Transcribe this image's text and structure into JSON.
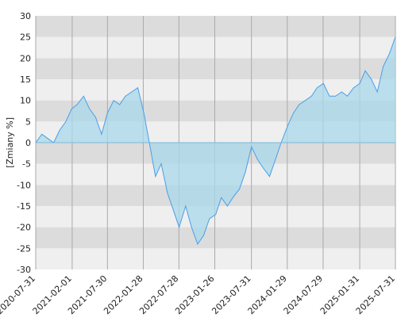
{
  "chart_data": {
    "type": "area",
    "y_label": "[Zmiany %]",
    "x": [
      "2020-07-31",
      "2020-08-31",
      "2020-09-30",
      "2020-10-30",
      "2020-11-30",
      "2020-12-31",
      "2021-01-29",
      "2021-02-26",
      "2021-03-31",
      "2021-04-30",
      "2021-05-31",
      "2021-06-30",
      "2021-07-30",
      "2021-08-31",
      "2021-09-30",
      "2021-10-29",
      "2021-11-30",
      "2021-12-31",
      "2022-01-31",
      "2022-02-28",
      "2022-03-31",
      "2022-04-29",
      "2022-05-31",
      "2022-06-30",
      "2022-07-29",
      "2022-08-31",
      "2022-09-30",
      "2022-10-31",
      "2022-11-30",
      "2022-12-30",
      "2023-01-31",
      "2023-02-28",
      "2023-03-31",
      "2023-04-28",
      "2023-05-31",
      "2023-06-30",
      "2023-07-31",
      "2023-08-31",
      "2023-09-29",
      "2023-10-31",
      "2023-11-30",
      "2023-12-29",
      "2024-01-31",
      "2024-02-29",
      "2024-03-29",
      "2024-04-30",
      "2024-05-31",
      "2024-06-28",
      "2024-07-31",
      "2024-08-30",
      "2024-09-30",
      "2024-10-31",
      "2024-11-29",
      "2024-12-31",
      "2025-01-31",
      "2025-02-28",
      "2025-03-31",
      "2025-04-30",
      "2025-05-30",
      "2025-06-30",
      "2025-07-31"
    ],
    "series": [
      {
        "name": "Zmiany",
        "color": "#4a9ee8",
        "fill": "#a8d8ea",
        "values": [
          0,
          2,
          1,
          0,
          3,
          5,
          8,
          9,
          11,
          8,
          6,
          2,
          7,
          10,
          9,
          11,
          12,
          13,
          7,
          0,
          -8,
          -5,
          -12,
          -16,
          -20,
          -15,
          -20,
          -24,
          -22,
          -18,
          -17,
          -13,
          -15,
          -13,
          -11,
          -7,
          -1,
          -4,
          -6,
          -8,
          -4,
          0,
          4,
          7,
          9,
          10,
          11,
          13,
          14,
          11,
          11,
          12,
          11,
          13,
          14,
          17,
          15,
          12,
          18,
          21,
          25
        ]
      }
    ],
    "xlim": [
      "2020-07-31",
      "2025-07-31"
    ],
    "xticks": [
      "2020-07-31",
      "2021-02-01",
      "2021-07-30",
      "2022-01-28",
      "2022-07-28",
      "2023-01-26",
      "2023-07-31",
      "2024-01-29",
      "2024-07-29",
      "2025-01-31",
      "2025-07-31"
    ],
    "ylim": [
      -30,
      30
    ],
    "yticks": [
      -30,
      -25,
      -20,
      -15,
      -10,
      -5,
      0,
      5,
      10,
      15,
      20,
      25,
      30
    ],
    "band_colors": [
      "#efefef",
      "#dcdcdc"
    ],
    "grid": true
  }
}
